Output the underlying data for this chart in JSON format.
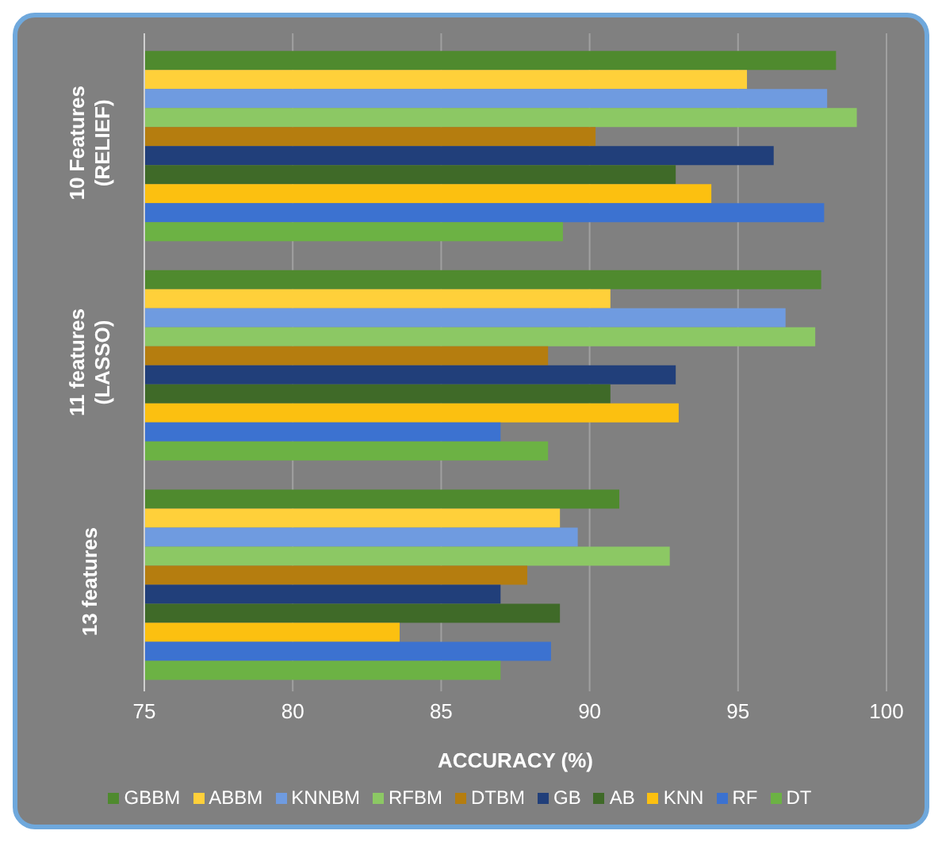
{
  "chart_data": {
    "type": "bar",
    "orientation": "horizontal",
    "xlabel": "ACCURACY (%)",
    "categories": [
      "10 Features (RELIEF)",
      "11 features (LASSO)",
      "13 features"
    ],
    "xlim": [
      75,
      100
    ],
    "xticks": [
      75,
      80,
      85,
      90,
      95,
      100
    ],
    "grid": "x",
    "legend": "bottom",
    "series": [
      {
        "name": "GBBM",
        "color": "#4f8a2e",
        "values": [
          98.3,
          97.8,
          91.0
        ]
      },
      {
        "name": "ABBM",
        "color": "#ffd03a",
        "values": [
          95.3,
          90.7,
          89.0
        ]
      },
      {
        "name": "KNNBM",
        "color": "#6f9be0",
        "values": [
          98.0,
          96.6,
          89.6
        ]
      },
      {
        "name": "RFBM",
        "color": "#8cc864",
        "values": [
          99.0,
          97.6,
          92.7
        ]
      },
      {
        "name": "DTBM",
        "color": "#b57d0f",
        "values": [
          90.2,
          88.6,
          87.9
        ]
      },
      {
        "name": "GB",
        "color": "#213f7a",
        "values": [
          96.2,
          92.9,
          87.0
        ]
      },
      {
        "name": "AB",
        "color": "#3f6a28",
        "values": [
          92.9,
          90.7,
          89.0
        ]
      },
      {
        "name": "KNN",
        "color": "#fcc010",
        "values": [
          94.1,
          93.0,
          83.6
        ]
      },
      {
        "name": "RF",
        "color": "#3c72d0",
        "values": [
          97.9,
          87.0,
          88.7
        ]
      },
      {
        "name": "DT",
        "color": "#6cb244",
        "values": [
          89.1,
          88.6,
          87.0
        ]
      }
    ]
  }
}
